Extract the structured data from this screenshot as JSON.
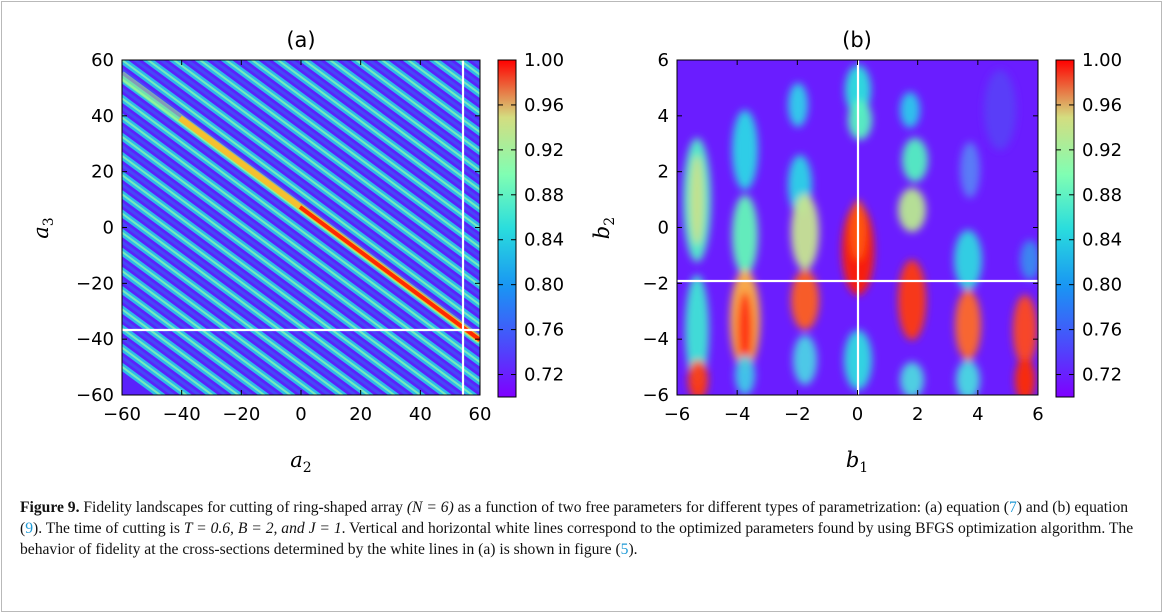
{
  "chart_data": [
    {
      "type": "heatmap",
      "panel_label": "(a)",
      "xlabel_var": "a",
      "xlabel_sub": "2",
      "ylabel_var": "a",
      "ylabel_sub": "3",
      "xlim": [
        -60,
        60
      ],
      "ylim": [
        -60,
        60
      ],
      "xticks": [
        "−60",
        "−40",
        "−20",
        "0",
        "20",
        "40",
        "60"
      ],
      "yticks": [
        "60",
        "40",
        "20",
        "0",
        "−20",
        "−40",
        "−60"
      ],
      "colorbar_range": [
        0.7,
        1.0
      ],
      "colorbar_ticks": [
        "1.00",
        "0.96",
        "0.92",
        "0.88",
        "0.84",
        "0.80",
        "0.76",
        "0.72"
      ],
      "colormap": "rainbow",
      "description_pattern": "diagonal stripes",
      "white_lines": {
        "vertical_x": 55,
        "horizontal_y": -36
      }
    },
    {
      "type": "heatmap",
      "panel_label": "(b)",
      "xlabel_var": "b",
      "xlabel_sub": "1",
      "ylabel_var": "b",
      "ylabel_sub": "2",
      "xlim": [
        -6,
        6
      ],
      "ylim": [
        -6,
        6
      ],
      "xticks": [
        "−6",
        "−4",
        "−2",
        "0",
        "2",
        "4",
        "6"
      ],
      "yticks": [
        "6",
        "4",
        "2",
        "0",
        "−2",
        "−4",
        "−6"
      ],
      "colorbar_range": [
        0.7,
        1.0
      ],
      "colorbar_ticks": [
        "1.00",
        "0.96",
        "0.92",
        "0.88",
        "0.84",
        "0.80",
        "0.76",
        "0.72"
      ],
      "colormap": "rainbow",
      "white_lines": {
        "vertical_x": 0,
        "horizontal_y": -1.8
      }
    }
  ],
  "caption": {
    "label": "Figure 9.",
    "t1": " Fidelity landscapes for cutting of ring-shaped array ",
    "t2": "(N = 6)",
    "t3": " as a function of two free parameters for different types of parametrization: (a) equation (",
    "ref1": "7",
    "t4": ") and (b) equation (",
    "ref2": "9",
    "t5": "). The time of cutting is ",
    "t6": "T = 0.6, B = 2, and J = 1",
    "t7": ". Vertical and horizontal white lines correspond to the optimized parameters found by using BFGS optimization algorithm. The behavior of fidelity at the cross-sections determined by the white lines in (a) is shown in figure (",
    "ref3": "5",
    "t8": ")."
  }
}
